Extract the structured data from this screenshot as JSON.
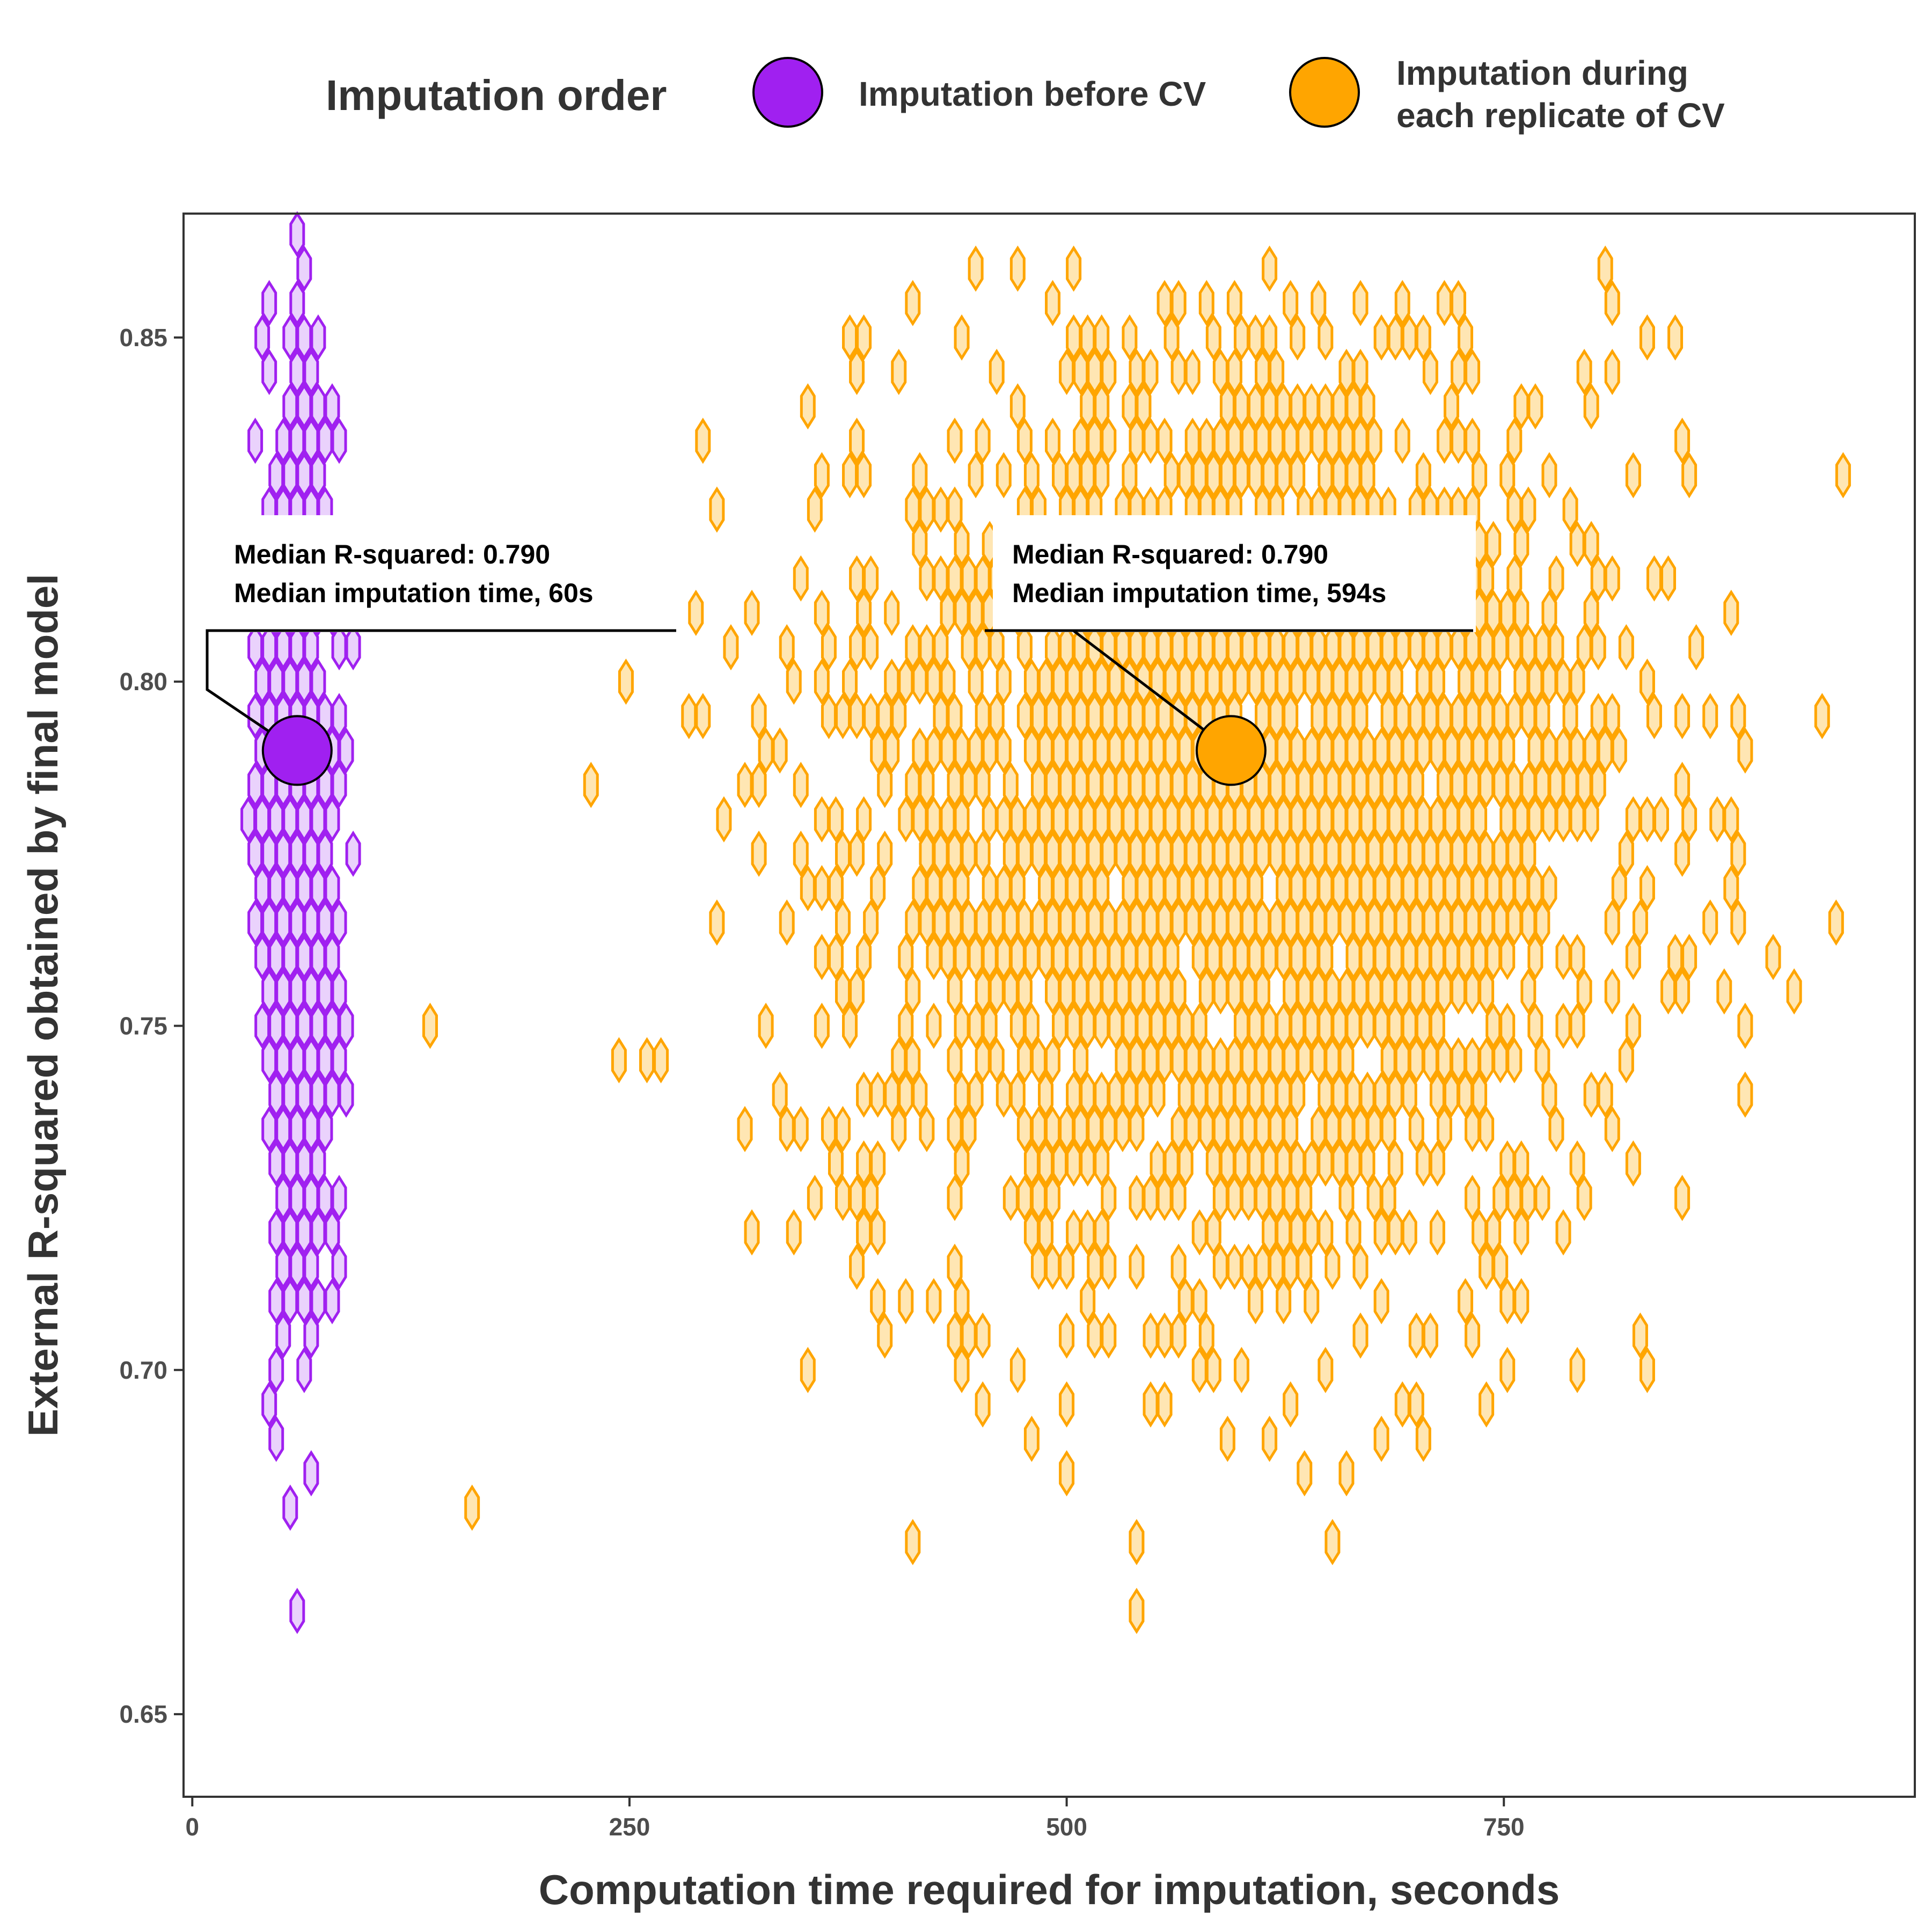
{
  "chart_data": {
    "type": "hexbin",
    "xlabel": "Computation time required for imputation, seconds",
    "ylabel": "External R-squared obtained by final model",
    "xlim": [
      -5,
      985
    ],
    "ylim": [
      0.638,
      0.868
    ],
    "x_ticks": [
      0,
      250,
      500,
      750
    ],
    "x_tick_labels": [
      "0",
      "250",
      "500",
      "750"
    ],
    "y_ticks": [
      0.65,
      0.7,
      0.75,
      0.8,
      0.85
    ],
    "y_tick_labels": [
      "0.65",
      "0.70",
      "0.75",
      "0.80",
      "0.85"
    ],
    "grid": false,
    "legend": {
      "title": "Imputation order",
      "position": "top",
      "entries": [
        {
          "label_lines": [
            "Imputation before CV"
          ],
          "color": "#a020f0"
        },
        {
          "label_lines": [
            "Imputation during",
            "each replicate of CV"
          ],
          "color": "#ffa500"
        }
      ]
    },
    "series": [
      {
        "name": "Imputation before CV",
        "color": "#a020f0",
        "fill": "#ead2fc",
        "median": {
          "x": 60,
          "y": 0.79
        },
        "x_center": 62,
        "x_spread": 10,
        "y_range": [
          0.65,
          0.865
        ],
        "hex_dx": 8,
        "hex_dy": 0.005,
        "n_points": 900
      },
      {
        "name": "Imputation during each replicate of CV",
        "color": "#ffa500",
        "fill": "#ffe6b3",
        "median": {
          "x": 594,
          "y": 0.79
        },
        "x_center": 594,
        "x_spread": 110,
        "y_range": [
          0.65,
          0.86
        ],
        "hex_dx": 8,
        "hex_dy": 0.005,
        "n_points": 2600
      }
    ],
    "annotations": [
      {
        "lines": [
          "Median R-squared: 0.790",
          "Median imputation time, 60s"
        ],
        "series": 0
      },
      {
        "lines": [
          "Median R-squared: 0.790",
          "Median imputation time, 594s"
        ],
        "series": 1
      }
    ]
  }
}
